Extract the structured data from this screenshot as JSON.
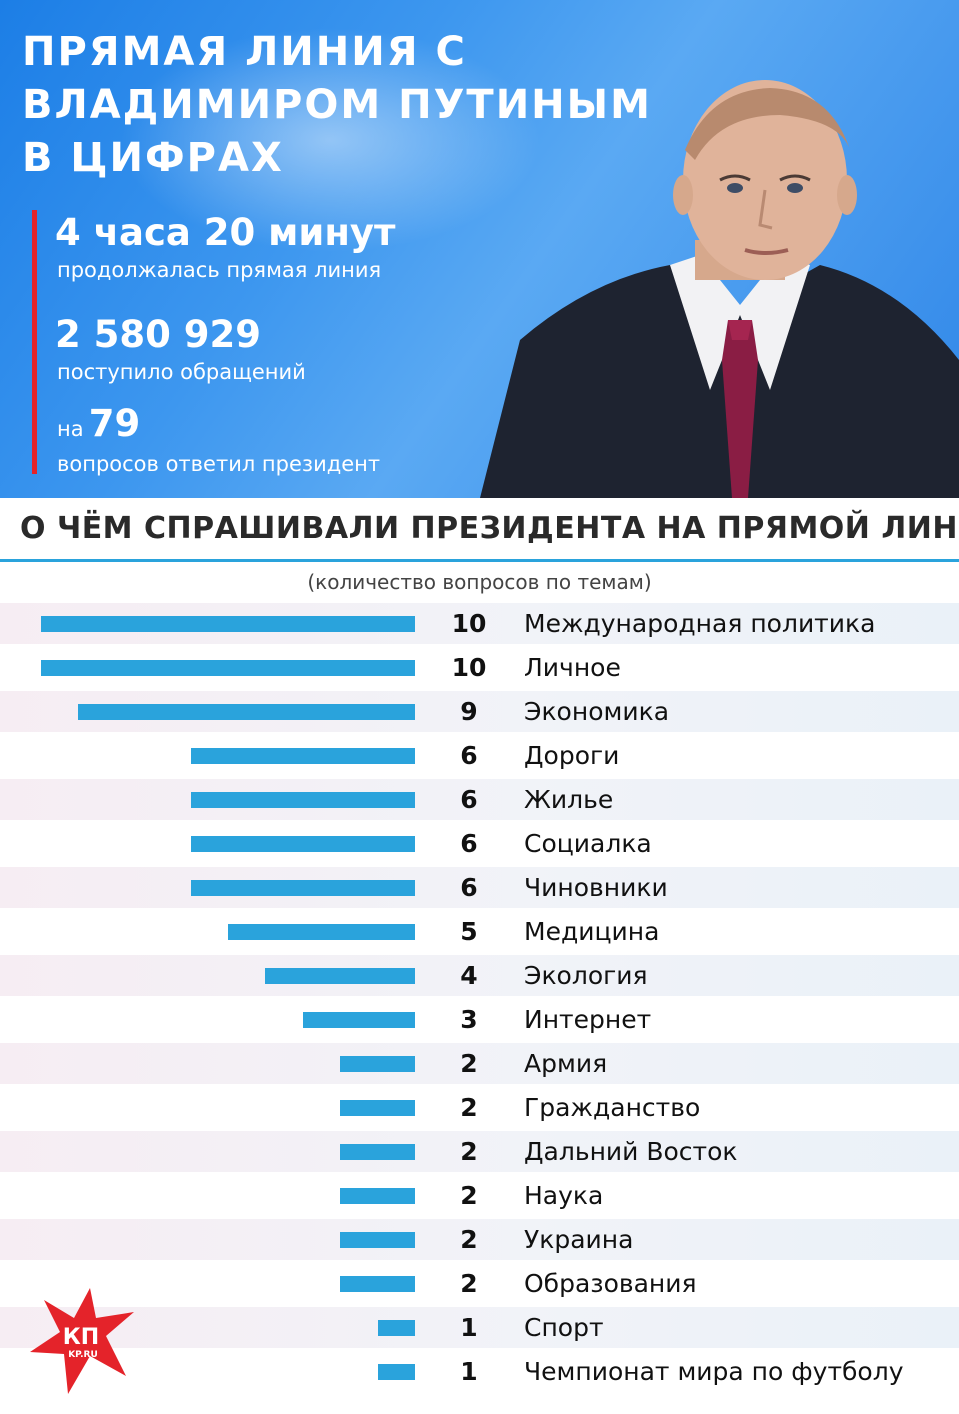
{
  "header": {
    "title_lines": [
      "ПРЯМАЯ ЛИНИЯ С",
      "ВЛАДИМИРОМ ПУТИНЫМ",
      "В ЦИФРАХ"
    ],
    "stat1_value": "4 часа 20 минут",
    "stat1_caption": "продолжалась прямая линия",
    "stat2_value": "2 580 929",
    "stat2_caption": "поступило обращений",
    "stat3_prefix": "на",
    "stat3_value": "79",
    "stat3_caption": "вопросов ответил президент"
  },
  "section_title": "О ЧЁМ СПРАШИВАЛИ ПРЕЗИДЕНТА НА ПРЯМОЙ ЛИНИИ?",
  "logo": {
    "text": "КП",
    "sub": "KP.RU",
    "colors": {
      "star": "#e4232a"
    }
  },
  "colors": {
    "bar": "#2aa3dc",
    "accent_red": "#e4232a",
    "header_blue": "#2f86e8"
  },
  "chart_data": {
    "type": "bar",
    "orientation": "horizontal",
    "subtitle": "(количество вопросов по темам)",
    "categories": [
      "Международная политика",
      "Личное",
      "Экономика",
      "Дороги",
      "Жилье",
      "Социалка",
      "Чиновники",
      "Медицина",
      "Экология",
      "Интернет",
      "Армия",
      "Гражданство",
      "Дальний Восток",
      "Наука",
      "Украина",
      "Образования",
      "Спорт",
      "Чемпионат мира по футболу"
    ],
    "values": [
      10,
      10,
      9,
      6,
      6,
      6,
      6,
      5,
      4,
      3,
      2,
      2,
      2,
      2,
      2,
      2,
      1,
      1
    ],
    "xlim": [
      0,
      10
    ]
  }
}
